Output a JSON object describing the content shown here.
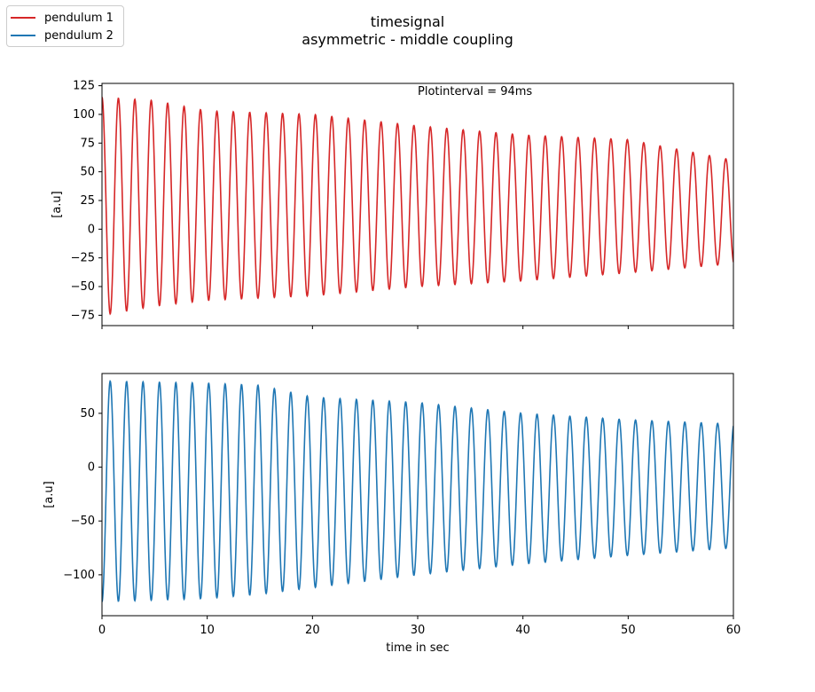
{
  "figure": {
    "title_line1": "timesignal",
    "title_line2": "asymmetric - middle coupling"
  },
  "legend": {
    "placement": "top-left",
    "items": [
      {
        "label": "pendulum 1",
        "color": "#d62728"
      },
      {
        "label": "pendulum 2",
        "color": "#1f77b4"
      }
    ]
  },
  "chart_data": [
    {
      "type": "line",
      "xlim": [
        0,
        60
      ],
      "ylim": [
        -84,
        127
      ],
      "yticks": [
        -75,
        -50,
        -25,
        0,
        25,
        50,
        75,
        100,
        125
      ],
      "ylabel": "[a.u]",
      "xlabel": "",
      "xticks_labeled": false,
      "annotation": "Plotinterval = 94ms",
      "grid": false,
      "series": [
        {
          "name": "pendulum 1",
          "color": "#d62728",
          "period_sec": 1.56,
          "envelope": [
            {
              "t": 0,
              "max": 115,
              "min": -75
            },
            {
              "t": 5,
              "max": 112,
              "min": -67
            },
            {
              "t": 10,
              "max": 103,
              "min": -62
            },
            {
              "t": 20,
              "max": 100,
              "min": -58
            },
            {
              "t": 30,
              "max": 90,
              "min": -50
            },
            {
              "t": 40,
              "max": 82,
              "min": -45
            },
            {
              "t": 50,
              "max": 78,
              "min": -38
            },
            {
              "t": 60,
              "max": 60,
              "min": -30
            }
          ]
        }
      ]
    },
    {
      "type": "line",
      "xlim": [
        0,
        60
      ],
      "ylim": [
        -138,
        87
      ],
      "yticks": [
        -100,
        -50,
        0,
        50
      ],
      "ylabel": "[a.u]",
      "xlabel": "time in sec",
      "xticks": [
        0,
        10,
        20,
        30,
        40,
        50,
        60
      ],
      "grid": false,
      "series": [
        {
          "name": "pendulum 2",
          "color": "#1f77b4",
          "period_sec": 1.56,
          "envelope": [
            {
              "t": 0,
              "max": 80,
              "min": -125
            },
            {
              "t": 10,
              "max": 78,
              "min": -122
            },
            {
              "t": 15,
              "max": 76,
              "min": -118
            },
            {
              "t": 20,
              "max": 65,
              "min": -112
            },
            {
              "t": 30,
              "max": 60,
              "min": -100
            },
            {
              "t": 40,
              "max": 50,
              "min": -90
            },
            {
              "t": 50,
              "max": 44,
              "min": -82
            },
            {
              "t": 60,
              "max": 40,
              "min": -75
            }
          ]
        }
      ]
    }
  ]
}
